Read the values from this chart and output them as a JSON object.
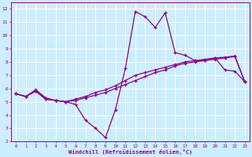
{
  "xlabel": "Windchill (Refroidissement éolien,°C)",
  "bg_color": "#cceeff",
  "grid_color": "#ffffff",
  "line_color": "#880088",
  "xlim": [
    -0.5,
    23.5
  ],
  "ylim": [
    2,
    12.5
  ],
  "xticks": [
    0,
    1,
    2,
    3,
    4,
    5,
    6,
    7,
    8,
    9,
    10,
    11,
    12,
    13,
    14,
    15,
    16,
    17,
    18,
    19,
    20,
    21,
    22,
    23
  ],
  "yticks": [
    2,
    3,
    4,
    5,
    6,
    7,
    8,
    9,
    10,
    11,
    12
  ],
  "line1_x": [
    0,
    1,
    2,
    3,
    4,
    5,
    6,
    7,
    8,
    9,
    10,
    11,
    12,
    13,
    14,
    15,
    16,
    17,
    18,
    19,
    20,
    21,
    22,
    23
  ],
  "line1_y": [
    5.6,
    5.4,
    5.9,
    5.3,
    5.1,
    5.0,
    4.8,
    3.6,
    3.0,
    2.3,
    4.4,
    7.5,
    11.8,
    11.4,
    10.6,
    11.7,
    8.7,
    8.5,
    8.1,
    8.1,
    8.3,
    7.4,
    7.3,
    6.5
  ],
  "line2_x": [
    0,
    1,
    2,
    3,
    4,
    5,
    6,
    7,
    8,
    9,
    10,
    11,
    12,
    13,
    14,
    15,
    16,
    17,
    18,
    19,
    20,
    21,
    22,
    23
  ],
  "line2_y": [
    5.6,
    5.4,
    5.8,
    5.2,
    5.1,
    5.0,
    5.1,
    5.3,
    5.5,
    5.7,
    6.0,
    6.3,
    6.6,
    6.9,
    7.2,
    7.4,
    7.7,
    7.9,
    8.0,
    8.1,
    8.2,
    8.3,
    8.4,
    6.5
  ],
  "line3_x": [
    0,
    1,
    2,
    3,
    4,
    5,
    6,
    7,
    8,
    9,
    10,
    11,
    12,
    13,
    14,
    15,
    16,
    17,
    18,
    19,
    20,
    21,
    22,
    23
  ],
  "line3_y": [
    5.6,
    5.4,
    5.8,
    5.2,
    5.1,
    5.0,
    5.2,
    5.4,
    5.7,
    5.9,
    6.2,
    6.6,
    7.0,
    7.2,
    7.4,
    7.6,
    7.8,
    8.0,
    8.1,
    8.2,
    8.3,
    8.35,
    8.45,
    6.5
  ]
}
